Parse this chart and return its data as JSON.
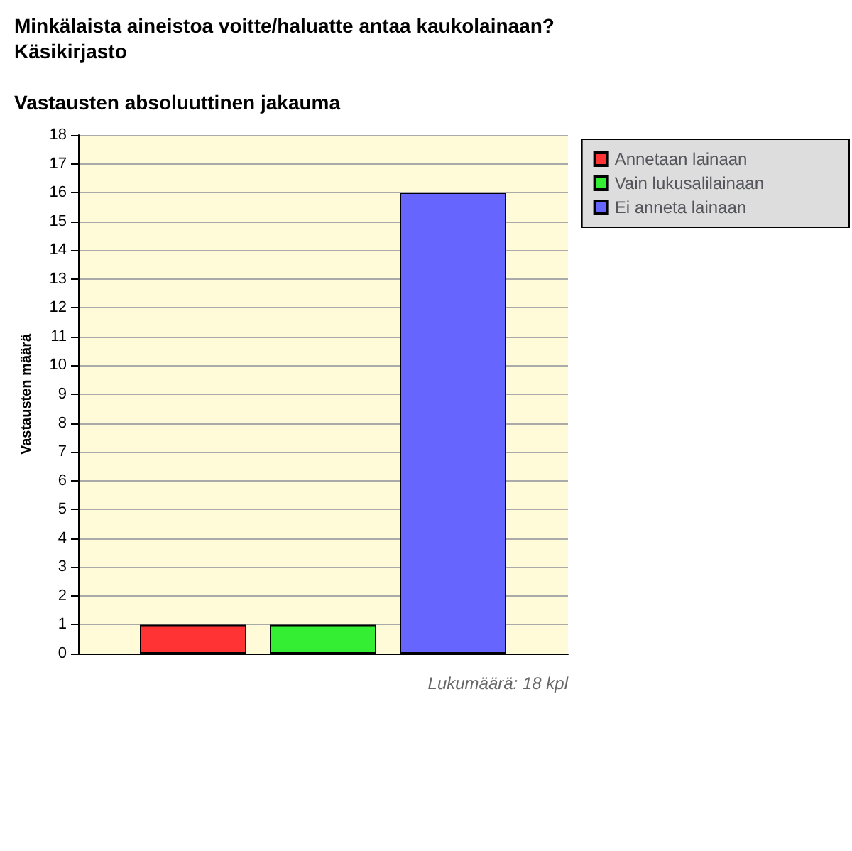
{
  "chart_data": {
    "type": "bar",
    "title": "Minkälaista aineistoa voitte/haluatte antaa kaukolainaan?\nKäsikirjasto",
    "subtitle": "Vastausten absoluuttinen jakauma",
    "ylabel": "Vastausten määrä",
    "categories": [
      null
    ],
    "series": [
      {
        "name": "Annetaan lainaan",
        "color": "#ff3333",
        "values": [
          1
        ]
      },
      {
        "name": "Vain lukusalilainaan",
        "color": "#33ee33",
        "values": [
          1
        ]
      },
      {
        "name": "Ei anneta lainaan",
        "color": "#6666ff",
        "values": [
          16
        ]
      }
    ],
    "ylim": [
      0,
      18
    ],
    "yticks": [
      0,
      1,
      2,
      3,
      4,
      5,
      6,
      7,
      8,
      9,
      10,
      11,
      12,
      13,
      14,
      15,
      16,
      17,
      18
    ],
    "grid": "y",
    "legend": "top right",
    "annotations": [
      "Lukumäärä: 18 kpl"
    ]
  }
}
